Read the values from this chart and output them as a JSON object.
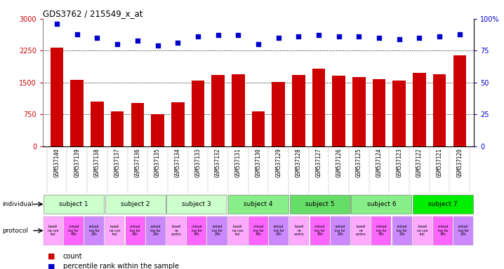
{
  "title": "GDS3762 / 215549_x_at",
  "samples": [
    "GSM537140",
    "GSM537139",
    "GSM537138",
    "GSM537137",
    "GSM537136",
    "GSM537135",
    "GSM537134",
    "GSM537133",
    "GSM537132",
    "GSM537131",
    "GSM537130",
    "GSM537129",
    "GSM537128",
    "GSM537127",
    "GSM537126",
    "GSM537125",
    "GSM537124",
    "GSM537123",
    "GSM537122",
    "GSM537121",
    "GSM537120"
  ],
  "counts": [
    2320,
    1560,
    1050,
    820,
    1020,
    750,
    1030,
    1540,
    1680,
    1700,
    820,
    1510,
    1670,
    1830,
    1660,
    1620,
    1580,
    1540,
    1720,
    1700,
    2140
  ],
  "percentiles": [
    96,
    88,
    85,
    80,
    83,
    79,
    81,
    86,
    87,
    87,
    80,
    85,
    86,
    87,
    86,
    86,
    85,
    84,
    85,
    86,
    88
  ],
  "bar_color": "#cc0000",
  "dot_color": "#0000cc",
  "ylim_left": [
    0,
    3000
  ],
  "ylim_right": [
    0,
    100
  ],
  "yticks_left": [
    0,
    750,
    1500,
    2250,
    3000
  ],
  "yticks_right": [
    0,
    25,
    50,
    75,
    100
  ],
  "hlines": [
    750,
    1500,
    2250
  ],
  "subjects": [
    {
      "label": "subject 1",
      "start": 0,
      "end": 3,
      "color": "#ccffcc"
    },
    {
      "label": "subject 2",
      "start": 3,
      "end": 6,
      "color": "#ccffcc"
    },
    {
      "label": "subject 3",
      "start": 6,
      "end": 9,
      "color": "#ccffcc"
    },
    {
      "label": "subject 4",
      "start": 9,
      "end": 12,
      "color": "#88ee88"
    },
    {
      "label": "subject 5",
      "start": 12,
      "end": 15,
      "color": "#66dd66"
    },
    {
      "label": "subject 6",
      "start": 15,
      "end": 18,
      "color": "#88ee88"
    },
    {
      "label": "subject 7",
      "start": 18,
      "end": 21,
      "color": "#00ee00"
    }
  ],
  "protocol_colors": [
    "#ffaaff",
    "#ff66ff",
    "#cc88ff"
  ],
  "bg_color": "#ffffff",
  "plot_bg_color": "#ffffff",
  "xtick_bg_color": "#cccccc",
  "tick_color_left": "#cc0000",
  "tick_color_right": "#0000cc"
}
